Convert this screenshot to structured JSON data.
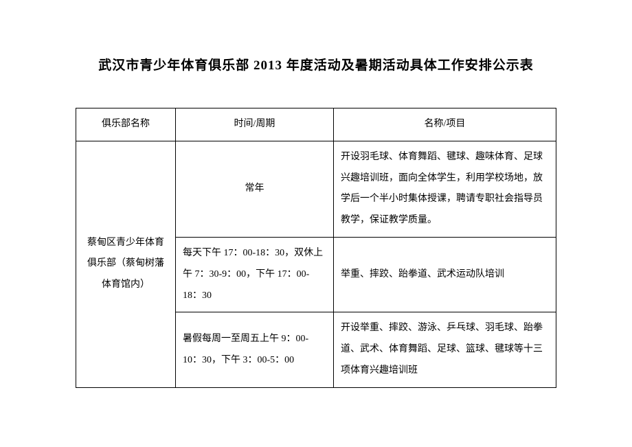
{
  "title": "武汉市青少年体育俱乐部 2013 年度活动及暑期活动具体工作安排公示表",
  "headers": {
    "club": "俱乐部名称",
    "time": "时间/周期",
    "project": "名称/项目"
  },
  "club_name": "蔡甸区青少年体育俱乐部（蔡甸树藩体育馆内）",
  "rows": [
    {
      "time": "常年",
      "desc": "开设羽毛球、体育舞蹈、毽球、趣味体育、足球兴趣培训班，面向全体学生，利用学校场地，放学后一个半小时集体授课，聘请专职社会指导员教学，保证教学质量。"
    },
    {
      "time": "每天下午 17：00-18：30，双休上午 7：30-9：00，下午 17：00-18：30",
      "desc": "举重、摔跤、跆拳道、武术运动队培训"
    },
    {
      "time": "暑假每周一至周五上午 9：00-10：30，下午 3：00-5：00",
      "desc": "开设举重、摔跤、游泳、乒乓球、羽毛球、跆拳道、武术、体育舞蹈、足球、篮球、毽球等十三项体育兴趣培训班"
    }
  ]
}
